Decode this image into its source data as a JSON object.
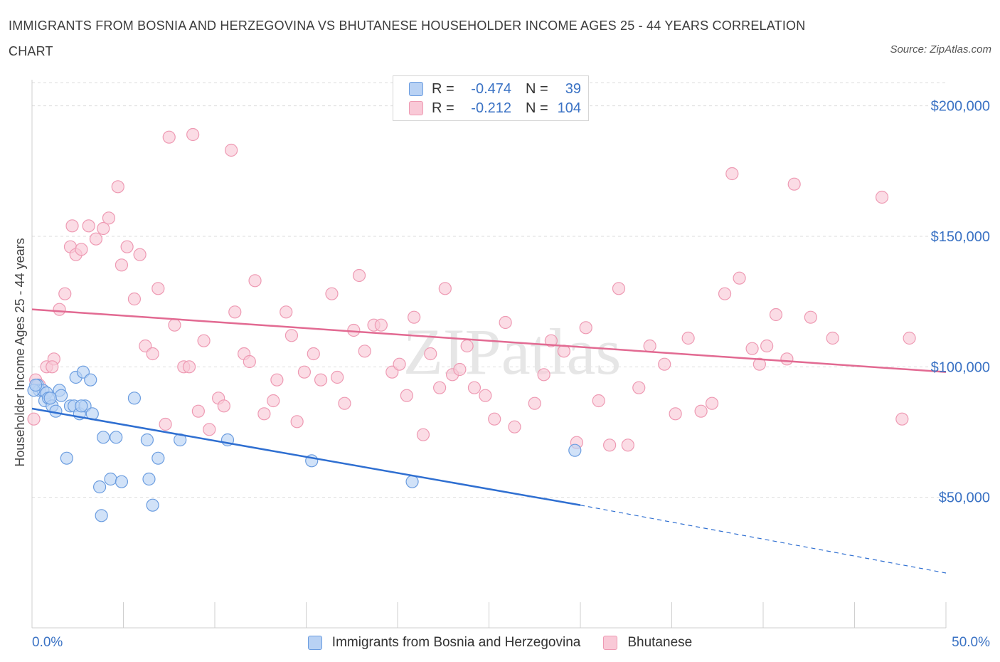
{
  "title": "IMMIGRANTS FROM BOSNIA AND HERZEGOVINA VS BHUTANESE HOUSEHOLDER INCOME AGES 25 - 44 YEARS CORRELATION CHART",
  "source": "Source: ZipAtlas.com",
  "watermark": "ZIPatlas",
  "colors": {
    "blue_fill": "#b9d2f4",
    "blue_stroke": "#6b9de0",
    "blue_line": "#2f6fd1",
    "pink_fill": "#f9c9d7",
    "pink_stroke": "#ee9ab3",
    "pink_line": "#e26a92",
    "axis_label": "#3a72c4",
    "grid": "#dddddd"
  },
  "legend": {
    "r_label": "R =",
    "n_label": "N =",
    "rows": [
      {
        "r": "-0.474",
        "n": "39"
      },
      {
        "r": "-0.212",
        "n": "104"
      }
    ]
  },
  "chart_data": {
    "type": "scatter",
    "ylabel": "Householder Income Ages 25 - 44 years",
    "xlabel": "",
    "xlim": [
      0,
      50
    ],
    "ylim": [
      0,
      210000
    ],
    "x_tick_labels": [
      "0.0%",
      "50.0%"
    ],
    "y_tick_labels": [
      "$200,000",
      "$150,000",
      "$100,000",
      "$50,000"
    ],
    "y_ticks": [
      200000,
      150000,
      100000,
      50000
    ],
    "grid": "horizontal dashed",
    "legend_position": "top-center",
    "series": [
      {
        "name": "Immigrants from Bosnia and Herzegovina",
        "color": "blue",
        "points": [
          [
            0.3,
            93000
          ],
          [
            0.4,
            91000
          ],
          [
            0.6,
            91000
          ],
          [
            0.7,
            87000
          ],
          [
            0.8,
            90000
          ],
          [
            0.9,
            88000
          ],
          [
            1.1,
            85000
          ],
          [
            1.3,
            83000
          ],
          [
            1.5,
            91000
          ],
          [
            1.6,
            89000
          ],
          [
            1.9,
            65000
          ],
          [
            2.1,
            85000
          ],
          [
            2.3,
            85000
          ],
          [
            2.4,
            96000
          ],
          [
            2.6,
            82000
          ],
          [
            2.8,
            98000
          ],
          [
            2.9,
            85000
          ],
          [
            3.2,
            95000
          ],
          [
            3.3,
            82000
          ],
          [
            3.7,
            54000
          ],
          [
            3.8,
            43000
          ],
          [
            3.9,
            73000
          ],
          [
            4.3,
            57000
          ],
          [
            4.6,
            73000
          ],
          [
            4.9,
            56000
          ],
          [
            5.6,
            88000
          ],
          [
            6.3,
            72000
          ],
          [
            6.4,
            57000
          ],
          [
            6.6,
            47000
          ],
          [
            6.9,
            65000
          ],
          [
            8.1,
            72000
          ],
          [
            10.7,
            72000
          ],
          [
            15.3,
            64000
          ],
          [
            20.8,
            56000
          ],
          [
            29.7,
            68000
          ],
          [
            0.1,
            91000
          ],
          [
            0.2,
            93000
          ],
          [
            2.7,
            85000
          ],
          [
            1.0,
            88000
          ]
        ]
      },
      {
        "name": "Bhutanese",
        "color": "pink",
        "points": [
          [
            0.1,
            80000
          ],
          [
            0.2,
            95000
          ],
          [
            0.4,
            93000
          ],
          [
            0.8,
            100000
          ],
          [
            1.2,
            103000
          ],
          [
            1.5,
            122000
          ],
          [
            1.8,
            128000
          ],
          [
            2.1,
            146000
          ],
          [
            2.4,
            143000
          ],
          [
            2.7,
            145000
          ],
          [
            3.1,
            154000
          ],
          [
            3.5,
            149000
          ],
          [
            3.9,
            153000
          ],
          [
            4.2,
            157000
          ],
          [
            4.7,
            169000
          ],
          [
            4.9,
            139000
          ],
          [
            5.2,
            146000
          ],
          [
            5.6,
            126000
          ],
          [
            5.9,
            143000
          ],
          [
            6.2,
            108000
          ],
          [
            6.6,
            105000
          ],
          [
            6.9,
            130000
          ],
          [
            7.3,
            78000
          ],
          [
            7.8,
            116000
          ],
          [
            8.3,
            100000
          ],
          [
            8.6,
            100000
          ],
          [
            9.1,
            83000
          ],
          [
            9.4,
            110000
          ],
          [
            9.7,
            76000
          ],
          [
            10.2,
            88000
          ],
          [
            10.5,
            85000
          ],
          [
            11.1,
            121000
          ],
          [
            11.6,
            105000
          ],
          [
            11.9,
            102000
          ],
          [
            12.2,
            133000
          ],
          [
            12.7,
            82000
          ],
          [
            13.2,
            87000
          ],
          [
            13.4,
            95000
          ],
          [
            13.9,
            121000
          ],
          [
            14.2,
            112000
          ],
          [
            14.5,
            79000
          ],
          [
            14.9,
            98000
          ],
          [
            15.4,
            105000
          ],
          [
            15.8,
            95000
          ],
          [
            16.4,
            128000
          ],
          [
            16.7,
            96000
          ],
          [
            17.1,
            86000
          ],
          [
            17.6,
            114000
          ],
          [
            17.9,
            135000
          ],
          [
            18.2,
            106000
          ],
          [
            18.7,
            116000
          ],
          [
            19.1,
            116000
          ],
          [
            19.7,
            98000
          ],
          [
            20.1,
            101000
          ],
          [
            20.5,
            89000
          ],
          [
            20.9,
            119000
          ],
          [
            21.4,
            74000
          ],
          [
            21.8,
            105000
          ],
          [
            22.3,
            92000
          ],
          [
            22.6,
            130000
          ],
          [
            23.0,
            97000
          ],
          [
            23.4,
            99000
          ],
          [
            23.8,
            108000
          ],
          [
            24.2,
            92000
          ],
          [
            24.8,
            89000
          ],
          [
            25.3,
            80000
          ],
          [
            25.9,
            117000
          ],
          [
            26.4,
            77000
          ],
          [
            27.5,
            86000
          ],
          [
            28.0,
            97000
          ],
          [
            28.4,
            110000
          ],
          [
            29.1,
            106000
          ],
          [
            29.8,
            71000
          ],
          [
            30.3,
            115000
          ],
          [
            31.0,
            87000
          ],
          [
            31.6,
            70000
          ],
          [
            32.1,
            130000
          ],
          [
            32.6,
            70000
          ],
          [
            33.2,
            92000
          ],
          [
            33.8,
            108000
          ],
          [
            34.6,
            101000
          ],
          [
            35.2,
            82000
          ],
          [
            35.9,
            111000
          ],
          [
            36.6,
            83000
          ],
          [
            37.2,
            86000
          ],
          [
            37.9,
            128000
          ],
          [
            38.3,
            174000
          ],
          [
            38.7,
            134000
          ],
          [
            39.4,
            107000
          ],
          [
            39.8,
            101000
          ],
          [
            40.2,
            108000
          ],
          [
            40.7,
            120000
          ],
          [
            41.3,
            103000
          ],
          [
            41.7,
            170000
          ],
          [
            42.6,
            119000
          ],
          [
            43.8,
            111000
          ],
          [
            46.5,
            165000
          ],
          [
            47.6,
            80000
          ],
          [
            48.0,
            111000
          ],
          [
            7.5,
            188000
          ],
          [
            8.8,
            189000
          ],
          [
            10.9,
            183000
          ],
          [
            1.1,
            100000
          ],
          [
            2.2,
            154000
          ]
        ]
      }
    ],
    "trendlines": [
      {
        "series": "Immigrants from Bosnia and Herzegovina",
        "x0": 0,
        "y0": 84000,
        "x1": 30,
        "y1": 47000,
        "dashed_to_x": 50,
        "dashed_to_y": 21000
      },
      {
        "series": "Bhutanese",
        "x0": 0,
        "y0": 122000,
        "x1": 50,
        "y1": 98000
      }
    ]
  }
}
